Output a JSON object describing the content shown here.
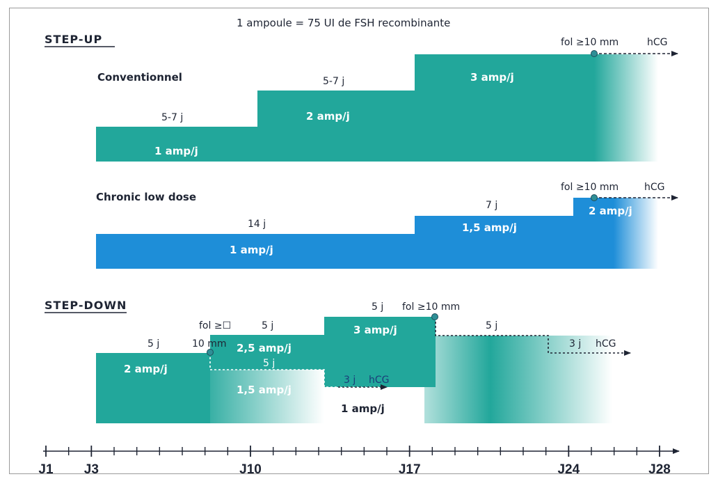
{
  "header_note": "1 ampoule = 75 UI de FSH recombinante",
  "colors": {
    "teal": "#22a79b",
    "blue": "#1e8ed8",
    "text": "#1e2433",
    "marker": "#2f8f96",
    "line": "#1e2433"
  },
  "step_up": {
    "title": "STEP-UP",
    "conventionnel": {
      "title": "Conventionnel",
      "doses": [
        "1 amp/j",
        "2 amp/j",
        "3 amp/j"
      ],
      "durations": [
        "5-7 j",
        "5-7 j"
      ],
      "endpoint": "fol ≥10 mm",
      "trigger": "hCG"
    },
    "chronic": {
      "title": "Chronic low dose",
      "doses": [
        "1 amp/j",
        "1,5 amp/j",
        "2 amp/j"
      ],
      "durations": [
        "14 j",
        "7 j"
      ],
      "endpoint": "fol ≥10 mm",
      "trigger": "hCG"
    }
  },
  "step_down": {
    "title": "STEP-DOWN",
    "doses": [
      "2 amp/j",
      "2,5 amp/j",
      "3 amp/j",
      "1,5 amp/j",
      "1 amp/j"
    ],
    "durations": [
      "5 j",
      "5 j",
      "5 j",
      "5 j",
      "3 j",
      "5 j",
      "3 j"
    ],
    "endpoint_top": "fol ≥10 mm",
    "endpoint_left_line1": "fol ≥☐",
    "endpoint_left_line2": "10 mm",
    "trigger_inner": "hCG",
    "trigger_outer": "hCG"
  },
  "axis": {
    "day_start": 1,
    "day_end": 28,
    "labeled_days": [
      1,
      3,
      10,
      17,
      24,
      28
    ],
    "labels": [
      "J1",
      "J3",
      "J10",
      "J17",
      "J24",
      "J28"
    ]
  }
}
